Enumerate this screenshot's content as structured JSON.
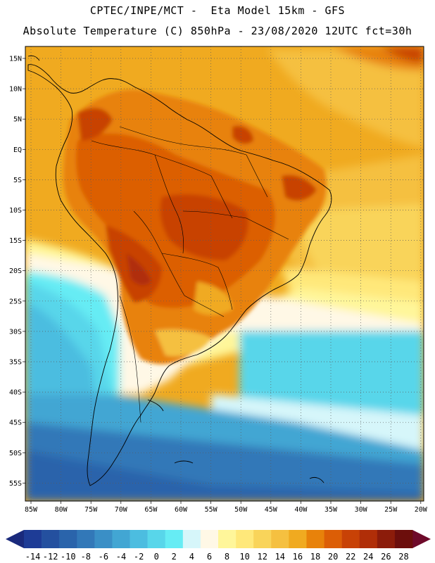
{
  "header": {
    "line1": "CPTEC/INPE/MCT -  Eta Model 15km - GFS",
    "line2": "Absolute Temperature (C) 850hPa - 23/08/2020 12UTC fct=30h"
  },
  "axes": {
    "lat_labels": [
      "15N",
      "10N",
      "5N",
      "EQ",
      "5S",
      "10S",
      "15S",
      "20S",
      "25S",
      "30S",
      "35S",
      "40S",
      "45S",
      "50S",
      "55S"
    ],
    "lon_labels": [
      "85W",
      "80W",
      "75W",
      "70W",
      "65W",
      "60W",
      "55W",
      "50W",
      "45W",
      "40W",
      "35W",
      "30W",
      "25W",
      "20W"
    ]
  },
  "colorbar": {
    "labels": [
      "-14",
      "-12",
      "-10",
      "-8",
      "-6",
      "-4",
      "-2",
      "0",
      "2",
      "4",
      "6",
      "8",
      "10",
      "12",
      "14",
      "16",
      "18",
      "20",
      "22",
      "24",
      "26",
      "28"
    ],
    "colors": [
      "#1e3c96",
      "#24509f",
      "#2a64ab",
      "#3278b8",
      "#3a8fc6",
      "#42a6d3",
      "#4cbde0",
      "#58d6ea",
      "#66ecf4",
      "#d6f6fa",
      "#fff8e6",
      "#fff69a",
      "#ffe87a",
      "#f9d45a",
      "#f5c040",
      "#f0aa20",
      "#e8820a",
      "#dc5e06",
      "#c84206",
      "#b02e08",
      "#8c1c0a",
      "#6c0e0c"
    ],
    "left_arrow_color": "#1a2a7c",
    "right_arrow_color": "#6e0a2a"
  }
}
